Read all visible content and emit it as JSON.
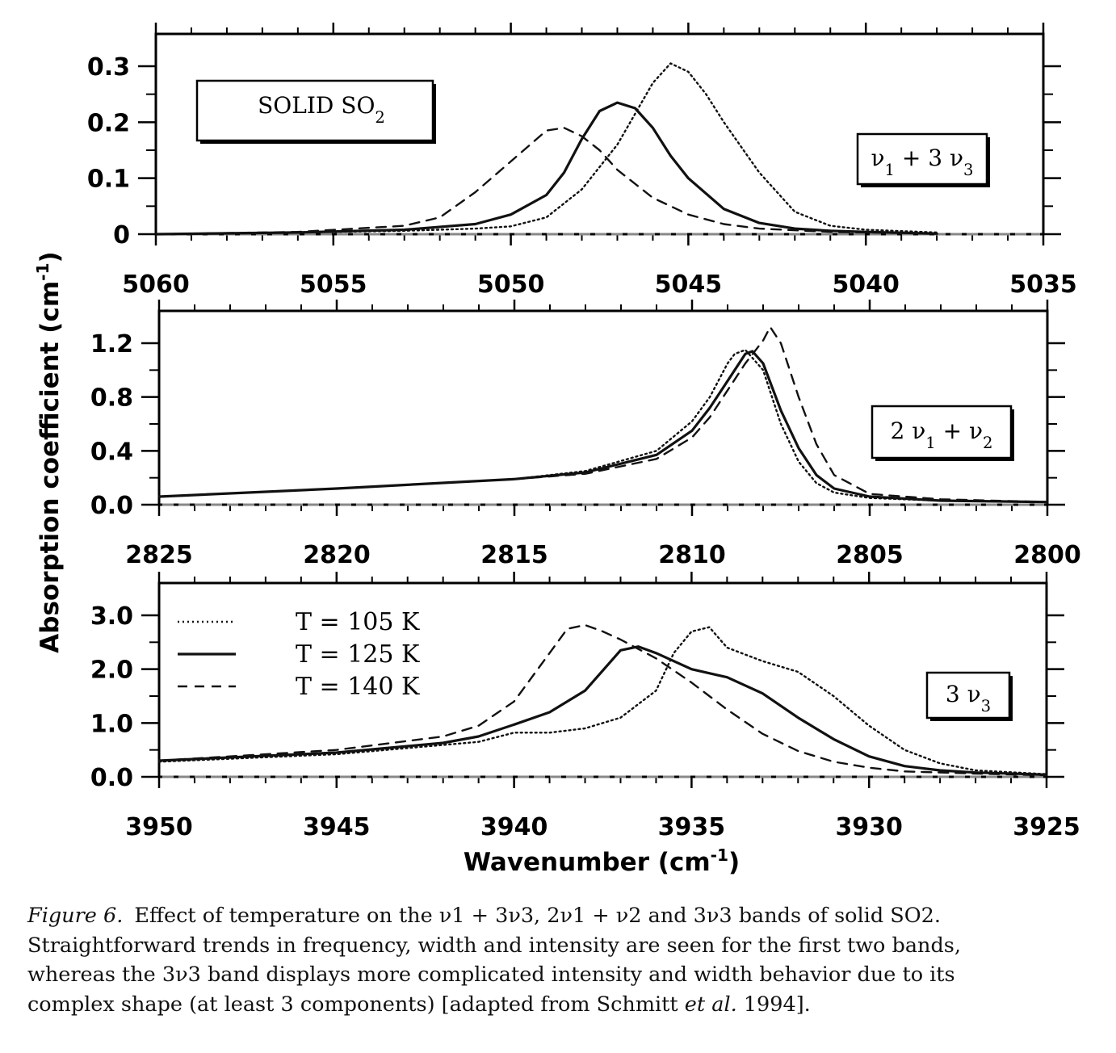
{
  "chart_data": [
    {
      "type": "line",
      "annotations": [
        "SOLID SO2",
        "ν1 + 3 ν3"
      ],
      "xlabel": "",
      "xlim": [
        5060,
        5035
      ],
      "ylim": [
        0,
        0.3
      ],
      "x_ticks": [
        "5060",
        "5055",
        "5050",
        "5045",
        "5040",
        "5035"
      ],
      "y_ticks": [
        "0",
        "0.1",
        "0.2",
        "0.3"
      ],
      "series": [
        {
          "name": "T = 105 K",
          "style": "dotted",
          "x": [
            5060,
            5056,
            5053,
            5051,
            5050,
            5049,
            5048,
            5047,
            5046.5,
            5046,
            5045.5,
            5045,
            5044.5,
            5044,
            5043.5,
            5043,
            5042,
            5041,
            5040,
            5038
          ],
          "y": [
            0,
            0.003,
            0.006,
            0.01,
            0.014,
            0.03,
            0.08,
            0.16,
            0.215,
            0.27,
            0.305,
            0.29,
            0.25,
            0.2,
            0.155,
            0.11,
            0.04,
            0.015,
            0.008,
            0.003
          ]
        },
        {
          "name": "T = 125 K",
          "style": "solid",
          "x": [
            5060,
            5056,
            5053,
            5051,
            5050,
            5049,
            5048.5,
            5048,
            5047.5,
            5047,
            5046.5,
            5046,
            5045.5,
            5045,
            5044,
            5043,
            5042,
            5041,
            5040,
            5038
          ],
          "y": [
            0,
            0.003,
            0.008,
            0.018,
            0.035,
            0.07,
            0.11,
            0.17,
            0.22,
            0.235,
            0.225,
            0.19,
            0.14,
            0.1,
            0.045,
            0.02,
            0.01,
            0.006,
            0.004,
            0.001
          ]
        },
        {
          "name": "T = 140 K",
          "style": "dashed",
          "x": [
            5060,
            5056,
            5053,
            5052,
            5051,
            5050,
            5049,
            5048.5,
            5048,
            5047.5,
            5047,
            5046,
            5045,
            5044,
            5043,
            5041,
            5038
          ],
          "y": [
            0,
            0.004,
            0.015,
            0.03,
            0.075,
            0.13,
            0.185,
            0.19,
            0.175,
            0.15,
            0.115,
            0.065,
            0.035,
            0.018,
            0.01,
            0.004,
            0.001
          ]
        }
      ]
    },
    {
      "type": "line",
      "annotations": [
        "2 ν1 + ν2"
      ],
      "xlabel": "",
      "xlim": [
        2825,
        2800
      ],
      "ylim": [
        0,
        1.2
      ],
      "x_ticks": [
        "2825",
        "2820",
        "2815",
        "2810",
        "2805",
        "2800"
      ],
      "y_ticks": [
        "0.0",
        "0.4",
        "0.8",
        "1.2"
      ],
      "series": [
        {
          "name": "T = 105 K",
          "style": "dotted",
          "x": [
            2825,
            2820,
            2815,
            2813,
            2811,
            2810,
            2809.5,
            2809,
            2808.8,
            2808.5,
            2808,
            2807.5,
            2807,
            2806.5,
            2806,
            2805,
            2803,
            2800
          ],
          "y": [
            0.06,
            0.12,
            0.19,
            0.25,
            0.4,
            0.62,
            0.8,
            1.05,
            1.12,
            1.15,
            1.0,
            0.6,
            0.32,
            0.16,
            0.09,
            0.05,
            0.03,
            0.02
          ]
        },
        {
          "name": "T = 125 K",
          "style": "solid",
          "x": [
            2825,
            2820,
            2815,
            2813,
            2811,
            2810,
            2809.5,
            2809,
            2808.5,
            2808.3,
            2808,
            2807.5,
            2807,
            2806.5,
            2806,
            2805,
            2803,
            2800
          ],
          "y": [
            0.06,
            0.12,
            0.19,
            0.24,
            0.37,
            0.55,
            0.72,
            0.92,
            1.12,
            1.14,
            1.05,
            0.7,
            0.42,
            0.22,
            0.12,
            0.06,
            0.03,
            0.02
          ]
        },
        {
          "name": "T = 140 K",
          "style": "dashed",
          "x": [
            2825,
            2820,
            2815,
            2813,
            2811,
            2810,
            2809.5,
            2809,
            2808.5,
            2808,
            2807.8,
            2807.5,
            2807,
            2806.5,
            2806,
            2805,
            2803,
            2800
          ],
          "y": [
            0.06,
            0.12,
            0.19,
            0.23,
            0.34,
            0.5,
            0.65,
            0.85,
            1.05,
            1.22,
            1.32,
            1.2,
            0.8,
            0.45,
            0.22,
            0.08,
            0.04,
            0.02
          ]
        }
      ]
    },
    {
      "type": "line",
      "annotations": [
        "3 ν3"
      ],
      "xlabel": "Wavenumber (cm-1)",
      "ylabel": "Absorption coefficient (cm-1)",
      "xlim": [
        3950,
        3925
      ],
      "ylim": [
        0,
        3.0
      ],
      "x_ticks": [
        "3950",
        "3945",
        "3940",
        "3935",
        "3930",
        "3925"
      ],
      "y_ticks": [
        "0.0",
        "1.0",
        "2.0",
        "3.0"
      ],
      "legend_position": "top-left",
      "series": [
        {
          "name": "T = 105 K",
          "style": "dotted",
          "x": [
            3950,
            3945,
            3941,
            3940,
            3939,
            3938,
            3937,
            3936,
            3935.5,
            3935,
            3934.5,
            3934,
            3933,
            3932,
            3931,
            3930,
            3929,
            3928,
            3927,
            3925
          ],
          "y": [
            0.28,
            0.42,
            0.65,
            0.82,
            0.82,
            0.9,
            1.1,
            1.6,
            2.3,
            2.7,
            2.78,
            2.4,
            2.15,
            1.95,
            1.5,
            0.95,
            0.5,
            0.25,
            0.12,
            0.05
          ]
        },
        {
          "name": "T = 125 K",
          "style": "solid",
          "x": [
            3950,
            3945,
            3942,
            3941,
            3940,
            3939,
            3938,
            3937,
            3936.5,
            3936,
            3935,
            3934,
            3933,
            3932,
            3931,
            3930,
            3929,
            3928,
            3927,
            3925
          ],
          "y": [
            0.3,
            0.45,
            0.63,
            0.75,
            0.97,
            1.2,
            1.6,
            2.35,
            2.42,
            2.3,
            2.0,
            1.85,
            1.55,
            1.1,
            0.7,
            0.38,
            0.2,
            0.12,
            0.08,
            0.04
          ]
        },
        {
          "name": "T = 140 K",
          "style": "dashed",
          "x": [
            3950,
            3945,
            3942,
            3941,
            3940,
            3939,
            3938.5,
            3938,
            3937.5,
            3937,
            3936,
            3935,
            3934,
            3933,
            3932,
            3931,
            3930,
            3929,
            3927,
            3925
          ],
          "y": [
            0.3,
            0.5,
            0.75,
            0.95,
            1.4,
            2.3,
            2.75,
            2.82,
            2.7,
            2.55,
            2.2,
            1.75,
            1.25,
            0.8,
            0.48,
            0.28,
            0.17,
            0.1,
            0.06,
            0.03
          ]
        }
      ]
    }
  ],
  "legend": {
    "entries": [
      {
        "label": "T = 105 K",
        "style": "dotted"
      },
      {
        "label": "T = 125 K",
        "style": "solid"
      },
      {
        "label": "T = 140 K",
        "style": "dashed"
      }
    ]
  },
  "caption": {
    "label": "Figure 6.",
    "lines": [
      "Effect of temperature on the ν1 + 3ν3, 2ν1 + ν2 and 3ν3 bands of solid SO2.",
      "Straightforward trends in frequency, width and intensity are seen for the first two bands,",
      "whereas the 3ν3 band displays more complicated intensity and width behavior due to its"
    ],
    "last_line_prefix": "complex shape (at least 3 components) [adapted from Schmitt ",
    "last_line_italic": "et al.",
    "last_line_suffix": " 1994]."
  }
}
